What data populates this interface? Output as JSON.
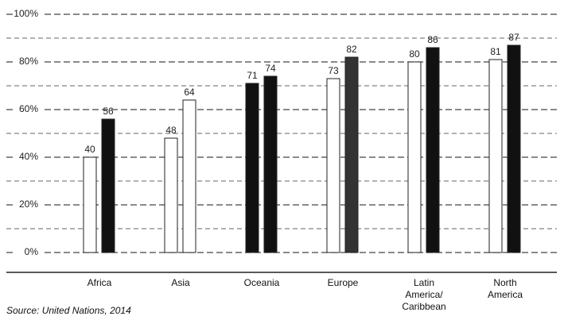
{
  "chart_data": {
    "type": "bar",
    "categories": [
      "Africa",
      "Asia",
      "Oceania",
      "Europe",
      "Latin\nAmerica/\nCaribbean",
      "North\nAmerica"
    ],
    "series": [
      {
        "values": [
          40,
          48,
          71,
          73,
          80,
          81
        ],
        "colors": [
          "#ffffff",
          "#ffffff",
          "#111111",
          "#ffffff",
          "#ffffff",
          "#ffffff"
        ]
      },
      {
        "values": [
          56,
          64,
          74,
          82,
          86,
          87
        ],
        "colors": [
          "#111111",
          "#ffffff",
          "#111111",
          "#333333",
          "#111111",
          "#111111"
        ]
      }
    ],
    "ylim": [
      0,
      100
    ],
    "yticks": [
      {
        "value": 0,
        "label": "0%"
      },
      {
        "value": 20,
        "label": "20%"
      },
      {
        "value": 40,
        "label": "40%"
      },
      {
        "value": 60,
        "label": "60%"
      },
      {
        "value": 80,
        "label": "80%"
      },
      {
        "value": 100,
        "label": "100%"
      }
    ],
    "minor_yticks": [
      10,
      30,
      50,
      70,
      90
    ],
    "grid": true,
    "source": "Source: United Nations, 2014"
  }
}
